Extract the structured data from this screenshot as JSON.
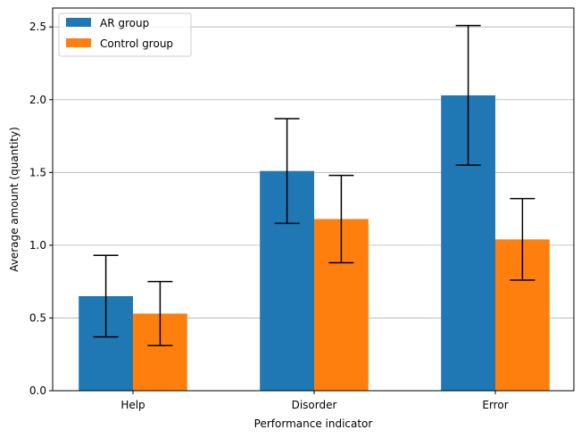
{
  "chart_data": {
    "type": "bar",
    "xlabel": "Performance indicator",
    "ylabel": "Average amount (quantity)",
    "categories": [
      "Help",
      "Disorder",
      "Error"
    ],
    "series": [
      {
        "name": "AR group",
        "color": "#1f77b4",
        "values": [
          0.65,
          1.51,
          2.03
        ],
        "errors": [
          0.28,
          0.36,
          0.48
        ]
      },
      {
        "name": "Control group",
        "color": "#ff7f0e",
        "values": [
          0.53,
          1.18,
          1.04
        ],
        "errors": [
          0.22,
          0.3,
          0.28
        ]
      }
    ],
    "ylim": [
      0,
      2.63
    ],
    "yticks": [
      "0.0",
      "0.5",
      "1.0",
      "1.5",
      "2.0",
      "2.5"
    ],
    "grid": "y",
    "legend_position": "upper-left"
  }
}
